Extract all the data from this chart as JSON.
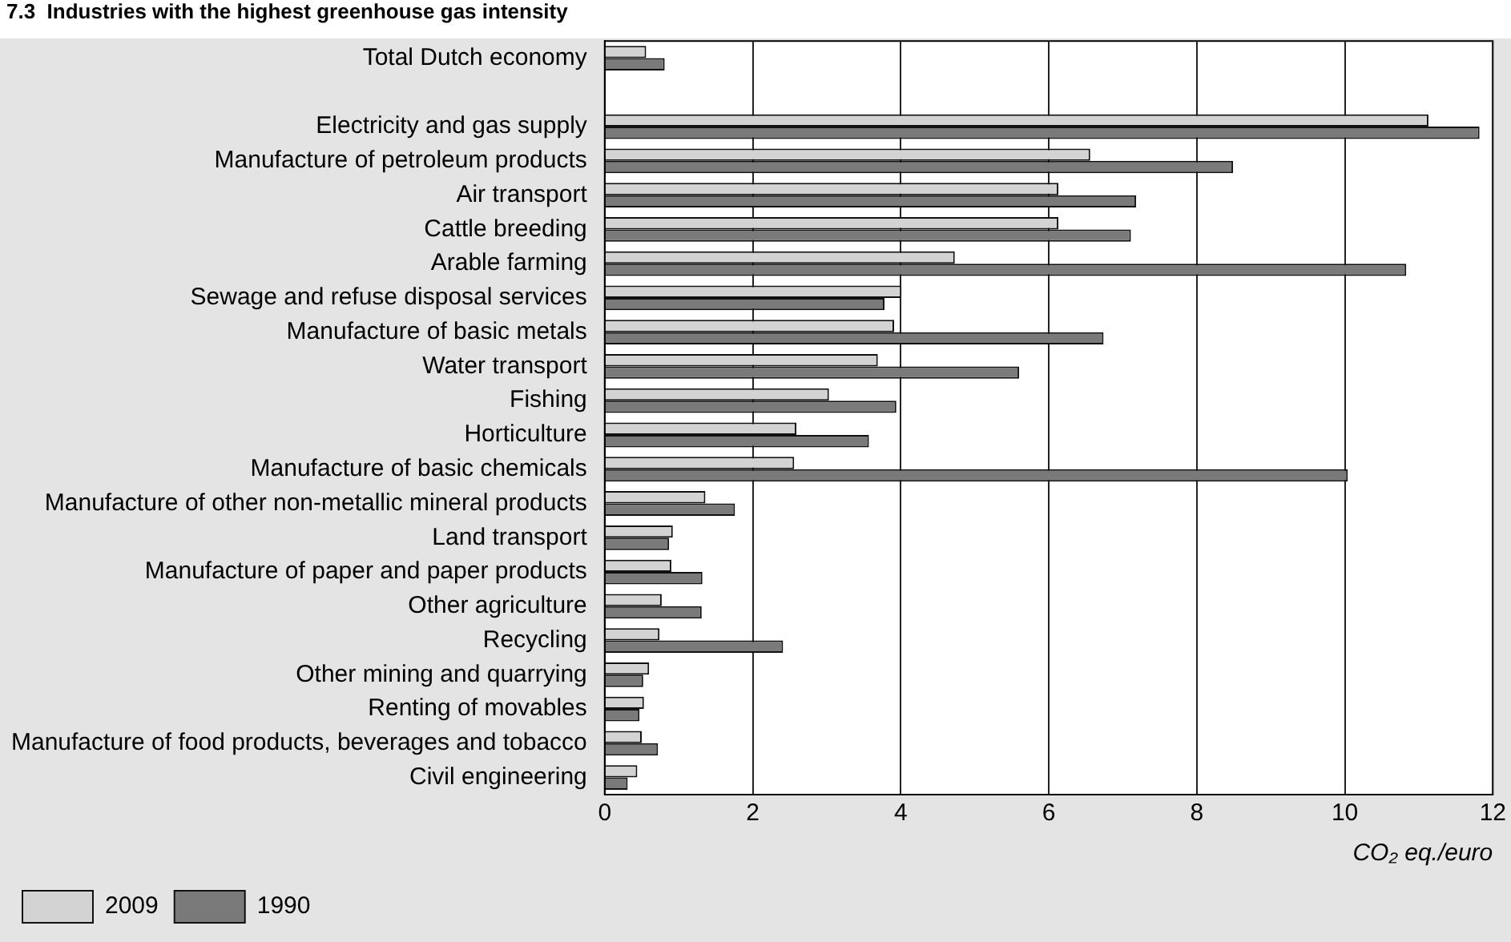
{
  "chart_data": {
    "type": "bar",
    "orientation": "horizontal",
    "title": "7.3  Industries with the highest greenhouse gas intensity",
    "xlabel": "CO₂ eq./euro",
    "categories": [
      "Total Dutch economy",
      null,
      "Electricity and gas supply",
      "Manufacture of petroleum products",
      "Air transport",
      "Cattle breeding",
      "Arable farming",
      "Sewage and refuse disposal services",
      "Manufacture of basic metals",
      "Water transport",
      "Fishing",
      "Horticulture",
      "Manufacture of basic chemicals",
      "Manufacture of other non-metallic mineral products",
      "Land transport",
      "Manufacture of paper and paper products",
      "Other agriculture",
      "Recycling",
      "Other mining and quarrying",
      "Renting of movables",
      "Manufacture of food products, beverages and tobacco",
      "Civil engineering"
    ],
    "series": [
      {
        "name": "2009",
        "color": "#d3d3d3",
        "values": [
          0.56,
          null,
          11.13,
          6.56,
          6.13,
          6.13,
          4.73,
          4.01,
          3.91,
          3.69,
          3.03,
          2.59,
          2.56,
          1.36,
          0.92,
          0.9,
          0.77,
          0.74,
          0.6,
          0.53,
          0.5,
          0.44
        ]
      },
      {
        "name": "1990",
        "color": "#7a7a7a",
        "values": [
          0.81,
          null,
          11.82,
          8.49,
          7.18,
          7.11,
          10.83,
          3.78,
          6.74,
          5.6,
          3.94,
          3.57,
          10.04,
          1.76,
          0.87,
          1.32,
          1.31,
          2.41,
          0.52,
          0.47,
          0.72,
          0.31
        ]
      }
    ],
    "xlim": [
      0,
      12
    ],
    "xticks": [
      0,
      2,
      4,
      6,
      8,
      10,
      12
    ],
    "grid": "x",
    "legend": "bottom left"
  }
}
